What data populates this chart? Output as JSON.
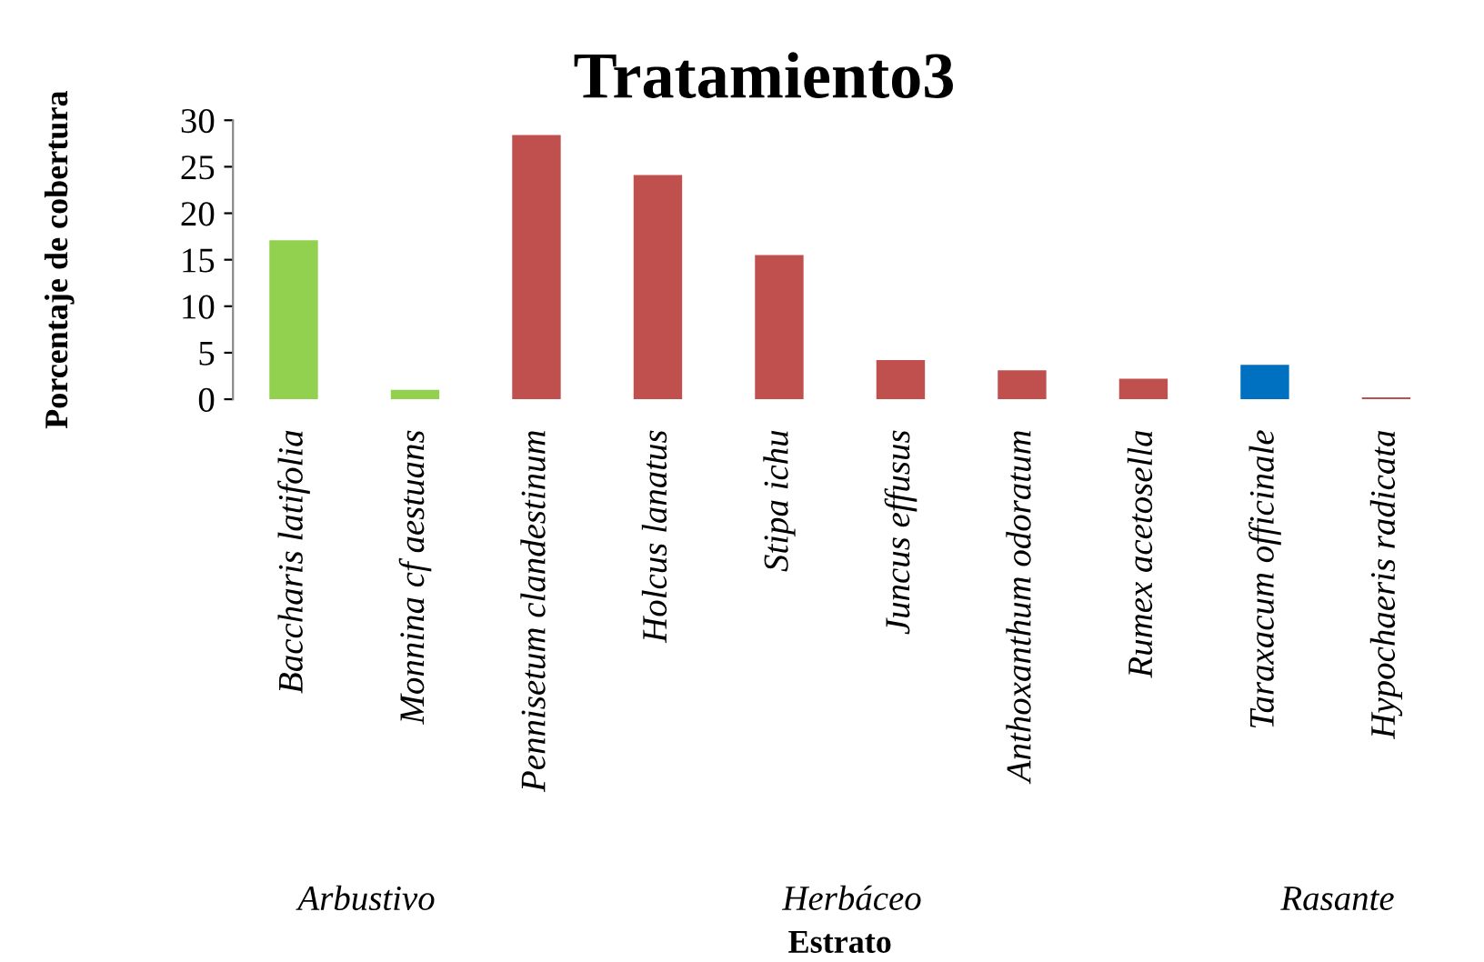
{
  "chart_data": {
    "type": "bar",
    "title": "Tratamiento3",
    "xlabel": "Estrato",
    "ylabel": "Porcentaje de cobertura",
    "categories": [
      "Baccharis latifolia",
      "Monnina cf aestuans",
      "Pennisetum clandestinum",
      "Holcus lanatus",
      "Stipa ichu",
      "Juncus effusus",
      "Anthoxanthum odoratum",
      "Rumex acetosella",
      "Taraxacum officinale",
      "Hypochaeris radicata"
    ],
    "values": [
      17.1,
      1.0,
      28.4,
      24.1,
      15.5,
      4.2,
      3.1,
      2.2,
      3.7,
      0.2
    ],
    "colors": [
      "#92d050",
      "#92d050",
      "#c0504d",
      "#c0504d",
      "#c0504d",
      "#c0504d",
      "#c0504d",
      "#c0504d",
      "#0070c0",
      "#c0504d"
    ],
    "ylim": [
      0,
      30
    ],
    "yticks": [
      0,
      5,
      10,
      15,
      20,
      25,
      30
    ],
    "grid": false,
    "legend": false,
    "annotations": [
      "Arbustivo",
      "Herbáceo",
      "Rasante"
    ]
  }
}
